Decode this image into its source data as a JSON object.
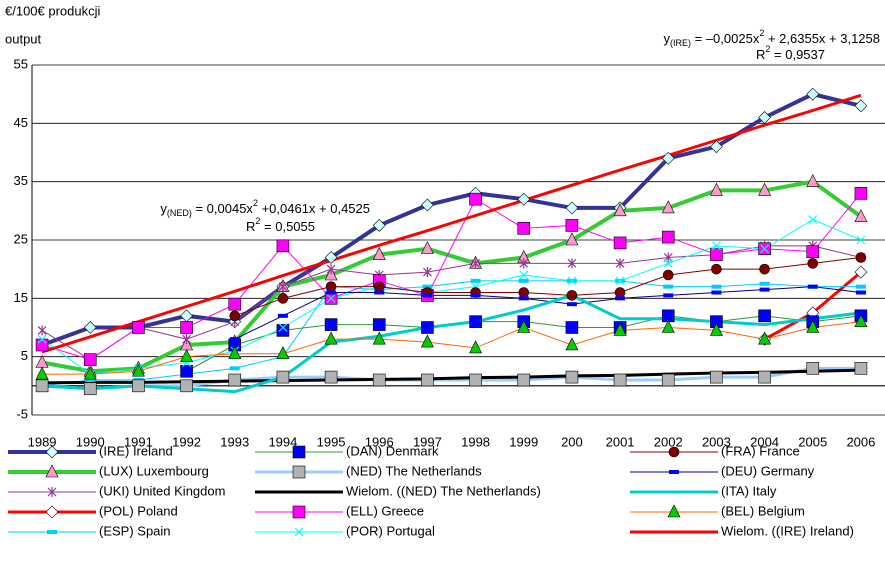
{
  "chart_data": {
    "type": "line",
    "y_label_lines": [
      "€/100€ produkcji",
      "output"
    ],
    "categories": [
      "1989",
      "1990",
      "1991",
      "1992",
      "1993",
      "1994",
      "1995",
      "1996",
      "1997",
      "1998",
      "1999",
      "200",
      "2001",
      "2002",
      "2003",
      "2004",
      "2005",
      "2006"
    ],
    "ylim": [
      -5,
      55
    ],
    "yticks": [
      55,
      45,
      35,
      25,
      15,
      5,
      -5
    ],
    "grid": true,
    "annotations": [
      {
        "parts": [
          "y",
          "(IRE)",
          " = –0,0025x",
          "2",
          " + 2,6355x + 3,1258"
        ],
        "r2": [
          "R",
          "2",
          " = 0,9537"
        ]
      },
      {
        "parts": [
          "y",
          "(NED)",
          " = 0,0045x",
          "2",
          " +0,0461x + 0,4525"
        ],
        "r2": [
          "R",
          "2",
          " = 0,5055"
        ]
      }
    ],
    "series": [
      {
        "name": "(IRE) Ireland",
        "color": "#333399",
        "width": 4,
        "marker": "diamond",
        "marker_color": "#ccffff",
        "values": [
          7,
          10,
          10,
          12,
          11,
          17,
          22,
          27.5,
          31,
          33,
          32,
          30.5,
          30.5,
          39,
          41,
          46,
          50,
          48
        ]
      },
      {
        "name": "(LUX) Luxembourg",
        "color": "#33cc33",
        "width": 4,
        "marker": "triangle",
        "marker_color": "#ff99cc",
        "values": [
          4,
          2.5,
          3,
          7,
          7.5,
          17,
          19,
          22.5,
          23.5,
          21,
          22,
          25,
          30,
          30.5,
          33.5,
          33.5,
          35,
          29
        ]
      },
      {
        "name": "(UKI) United Kingdom",
        "color": "#993399",
        "width": 1,
        "marker": "star",
        "marker_color": "#993399",
        "values": [
          9.5,
          4.5,
          10,
          8,
          11,
          17,
          20,
          19,
          19.5,
          21,
          21,
          21,
          21,
          22,
          22.5,
          24,
          24,
          22
        ]
      },
      {
        "name": "(POL) Poland",
        "color": "#ff0000",
        "width": 3,
        "marker": "diamond",
        "marker_color": "#ffffff",
        "values": [
          null,
          null,
          null,
          null,
          null,
          null,
          null,
          null,
          null,
          null,
          null,
          null,
          null,
          null,
          null,
          8,
          12.5,
          19.5
        ]
      },
      {
        "name": "(ESP) Spain",
        "color": "#00ccff",
        "width": 1,
        "marker": "dash",
        "marker_color": "#00ccff",
        "values": [
          0,
          1,
          1,
          2,
          3,
          5,
          17,
          16.5,
          17,
          18,
          18,
          18,
          18,
          17,
          17,
          17.5,
          17,
          17
        ]
      },
      {
        "name": "(DAN) Denmark",
        "color": "#339933",
        "width": 1,
        "marker": "square",
        "marker_color": "#0000ff",
        "values": [
          null,
          null,
          null,
          2.5,
          7,
          9.5,
          10.5,
          10.5,
          10,
          11,
          11,
          10,
          10,
          12,
          11,
          12,
          11,
          12
        ]
      },
      {
        "name": "(NED) The Netherlands",
        "color": "#99ccff",
        "width": 3,
        "marker": "square",
        "marker_color": "#b2b2b2",
        "values": [
          0,
          -0.5,
          0,
          0,
          1,
          1.5,
          1.5,
          1,
          1,
          1,
          1,
          1.5,
          1,
          1,
          1.5,
          1.5,
          3,
          3
        ]
      },
      {
        "name": "Wielom. ((NED) The Netherlands)",
        "color": "#000000",
        "width": 3,
        "marker": "none",
        "marker_color": "#000000",
        "values": [
          0.5,
          0.6,
          0.6,
          0.7,
          0.8,
          0.9,
          1,
          1.1,
          1.2,
          1.4,
          1.5,
          1.7,
          1.8,
          2,
          2.2,
          2.3,
          2.5,
          2.7
        ]
      },
      {
        "name": "(ELL) Greece",
        "color": "#ff00ff",
        "width": 1,
        "marker": "square",
        "marker_color": "#ff00ff",
        "values": [
          7,
          4.5,
          10,
          10,
          14,
          24,
          15,
          18,
          15.5,
          32,
          27,
          27.5,
          24.5,
          25.5,
          22.5,
          23.5,
          23,
          33
        ]
      },
      {
        "name": "(POR) Portugal",
        "color": "#00ffff",
        "width": 1,
        "marker": "x",
        "marker_color": "#00ffff",
        "values": [
          8,
          2,
          3,
          4,
          6,
          10,
          15,
          17,
          16,
          17,
          19,
          18,
          18,
          21,
          24,
          23.5,
          28.5,
          25
        ]
      },
      {
        "name": "(FRA) France",
        "color": "#800000",
        "width": 1,
        "marker": "circle",
        "marker_color": "#800000",
        "values": [
          null,
          null,
          null,
          null,
          12,
          15,
          17,
          17,
          16,
          16,
          16,
          15.5,
          16,
          19,
          20,
          20,
          21,
          22
        ]
      },
      {
        "name": "(DEU) Germany",
        "color": "#000080",
        "width": 1,
        "marker": "dash",
        "marker_color": "#0000ff",
        "values": [
          null,
          null,
          null,
          null,
          8,
          12,
          16,
          16,
          15.5,
          15.5,
          15,
          14,
          15,
          15.5,
          16,
          16.5,
          17,
          16
        ]
      },
      {
        "name": "(ITA) Italy",
        "color": "#00cccc",
        "width": 3,
        "marker": "none",
        "marker_color": "#00cccc",
        "values": [
          0,
          -0.5,
          0,
          -0.5,
          -1,
          1.5,
          7.5,
          8.5,
          10,
          11,
          13,
          15.5,
          11.5,
          11.5,
          11,
          10.5,
          11.5,
          12.5
        ]
      },
      {
        "name": "(BEL) Belgium",
        "color": "#ff6600",
        "width": 1,
        "marker": "triangle",
        "marker_color": "#00cc00",
        "values": [
          2,
          2,
          2.5,
          5,
          5.5,
          5.5,
          8,
          8,
          7.5,
          6.5,
          10,
          7,
          9.5,
          10,
          9.5,
          8,
          10,
          11
        ]
      },
      {
        "name": "Wielom. ((IRE) Ireland)",
        "color": "#ff0000",
        "width": 3,
        "marker": "none",
        "marker_color": "#ff0000",
        "values": [
          5.8,
          8.4,
          11,
          13.6,
          16.2,
          18.9,
          21.5,
          24.1,
          26.6,
          29.2,
          31.8,
          34.4,
          37,
          39.5,
          42.1,
          44.7,
          47.2,
          49.8
        ]
      }
    ]
  }
}
